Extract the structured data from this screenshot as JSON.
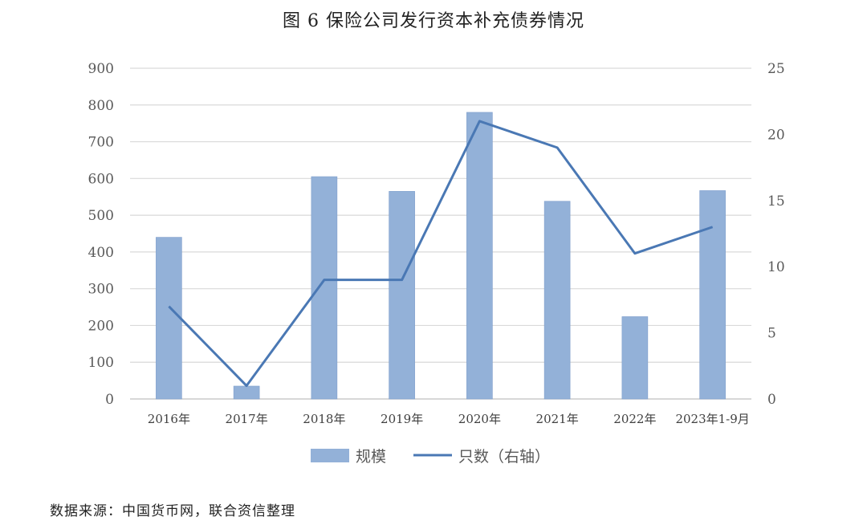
{
  "title": "图 6  保险公司发行资本补充债券情况",
  "source": "数据来源：中国货币网，联合资信整理",
  "colors": {
    "bar": "#93b1d8",
    "bar_edge": "#7f9fcc",
    "line": "#4a78b4",
    "grid": "#d9d9d9",
    "axis": "#bfbfbf",
    "text": "#595959"
  },
  "chart_data": {
    "type": "bar",
    "categories": [
      "2016年",
      "2017年",
      "2018年",
      "2019年",
      "2020年",
      "2021年",
      "2022年",
      "2023年1-9月"
    ],
    "series": [
      {
        "name": "规模",
        "type": "bar",
        "axis": "left",
        "values": [
          440,
          35,
          605,
          565,
          780,
          538,
          224,
          567
        ]
      },
      {
        "name": "只数（右轴）",
        "type": "line",
        "axis": "right",
        "values": [
          7,
          1,
          9,
          9,
          21,
          19,
          11,
          13
        ]
      }
    ],
    "y_left": {
      "min": 0,
      "max": 900,
      "ticks": [
        "0",
        "100",
        "200",
        "300",
        "400",
        "500",
        "600",
        "700",
        "800",
        "900"
      ]
    },
    "y_right": {
      "min": 0,
      "max": 25,
      "ticks": [
        "0",
        "5",
        "10",
        "15",
        "20",
        "25"
      ]
    },
    "grid": true,
    "legend": "bottom"
  }
}
